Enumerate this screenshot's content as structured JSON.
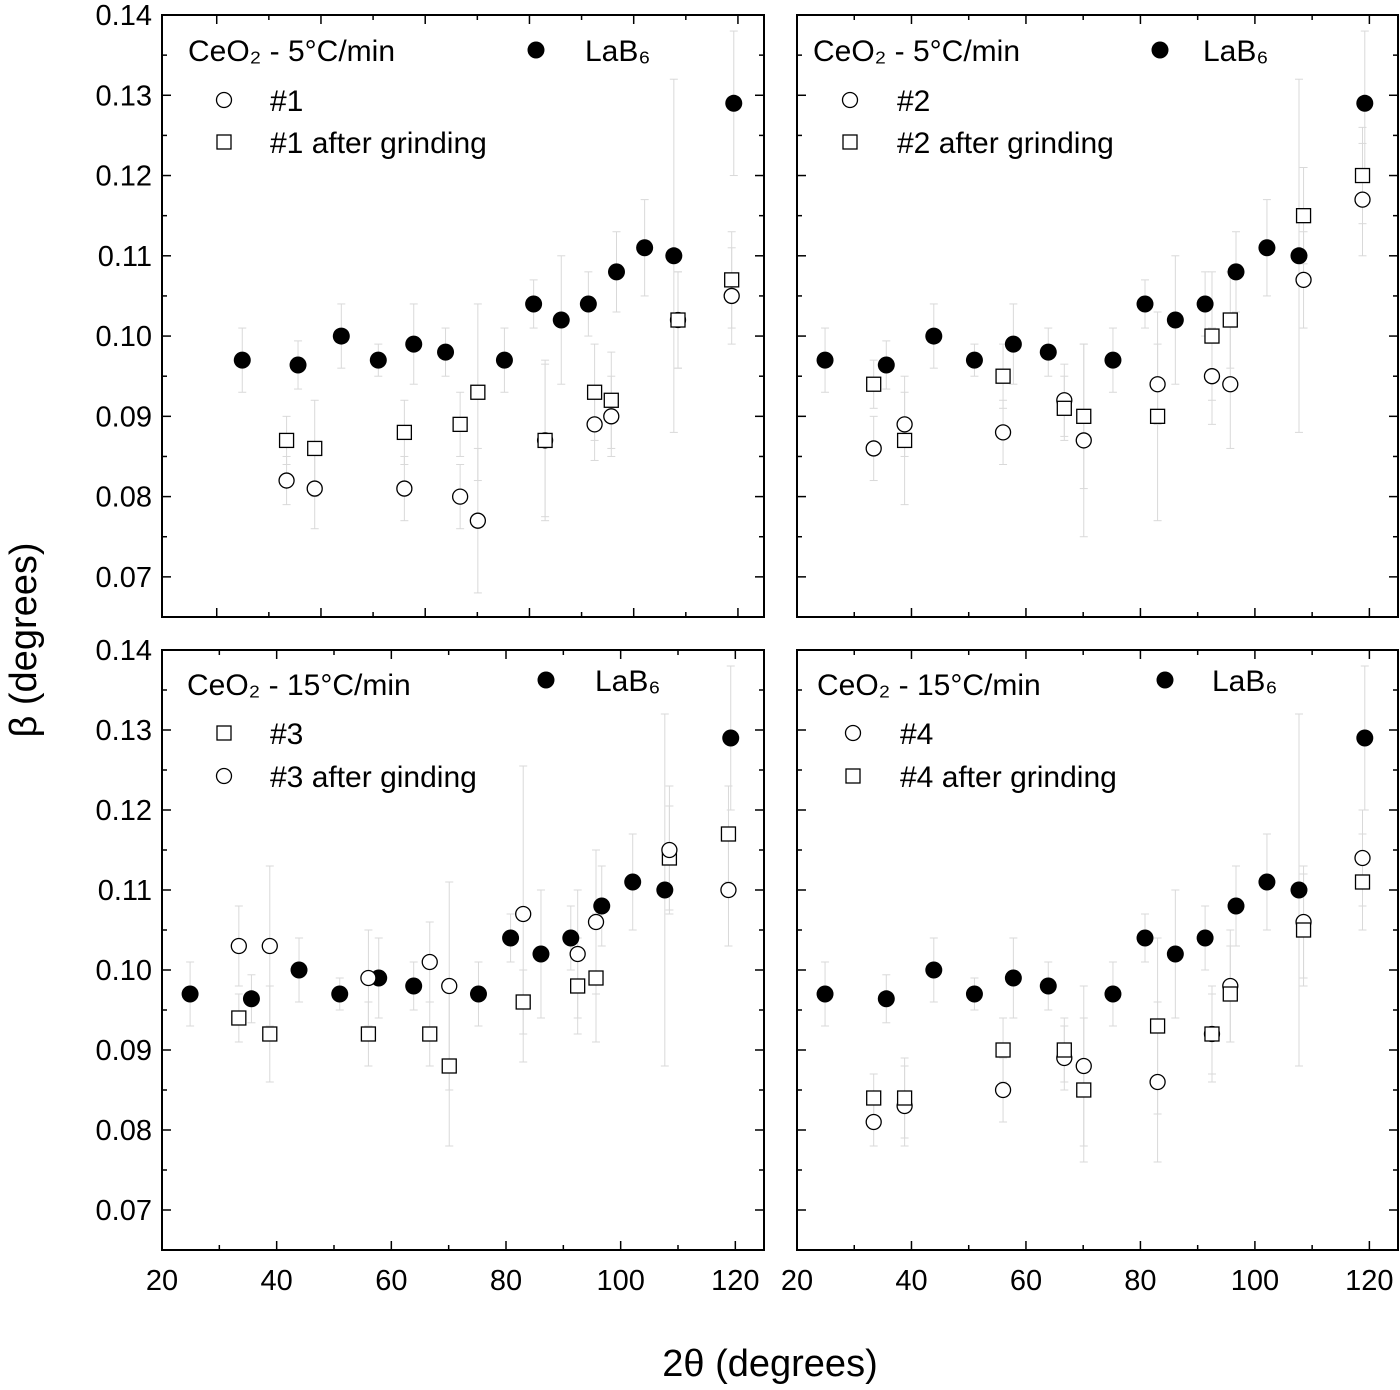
{
  "figure": {
    "xlabel": "2θ (degrees)",
    "ylabel": "β (degrees)",
    "colors": {
      "marker": "#000000",
      "error_bar": "#d9d9d9",
      "axes": "#000000"
    },
    "grid": false
  },
  "chart_data": [
    {
      "type": "scatter",
      "annotation": "CeO₂ - 5°C/min",
      "xlim": [
        9.5,
        125
      ],
      "ylim": [
        0.065,
        0.14
      ],
      "xticks": [
        20,
        30,
        40,
        50,
        60,
        70,
        80,
        90,
        100,
        110,
        120
      ],
      "xtick_labels": [],
      "yticks": [
        0.07,
        0.08,
        0.09,
        0.1,
        0.11,
        0.12,
        0.13,
        0.14
      ],
      "ytick_labels": [
        "0.07",
        "0.08",
        "0.09",
        "0.10",
        "0.11",
        "0.12",
        "0.13",
        "0.14"
      ],
      "series": [
        {
          "name": "LaB₆",
          "marker": "filled-circle",
          "x": [
            24.9,
            35.6,
            43.9,
            51.0,
            57.8,
            63.9,
            75.2,
            80.8,
            86.1,
            91.3,
            96.7,
            102.1,
            107.7,
            119.2
          ],
          "y": [
            0.097,
            0.0964,
            0.1,
            0.097,
            0.099,
            0.098,
            0.097,
            0.104,
            0.102,
            0.104,
            0.108,
            0.111,
            0.11,
            0.129
          ],
          "err": [
            0.004,
            0.003,
            0.004,
            0.002,
            0.005,
            0.003,
            0.004,
            0.003,
            0.008,
            0.004,
            0.005,
            0.006,
            0.022,
            0.009
          ]
        },
        {
          "name": "#1",
          "marker": "open-circle",
          "x": [
            33.4,
            38.8,
            56.0,
            66.7,
            70.1,
            83.0,
            92.5,
            95.7,
            108.5,
            118.8
          ],
          "y": [
            0.082,
            0.081,
            0.081,
            0.08,
            0.077,
            0.087,
            0.089,
            0.09,
            0.102,
            0.105
          ],
          "err": [
            0.003,
            0.005,
            0.004,
            0.004,
            0.009,
            0.01,
            0.0045,
            0.005,
            0.006,
            0.006
          ]
        },
        {
          "name": "#1 after grinding",
          "marker": "open-square",
          "x": [
            33.4,
            38.8,
            56.0,
            66.7,
            70.1,
            83.0,
            92.5,
            95.7,
            108.5,
            118.8
          ],
          "y": [
            0.087,
            0.086,
            0.088,
            0.089,
            0.093,
            0.087,
            0.093,
            0.092,
            0.102,
            0.107
          ],
          "err": [
            0.003,
            0.006,
            0.004,
            0.004,
            0.011,
            0.0095,
            0.006,
            0.006,
            0.006,
            0.006
          ]
        }
      ]
    },
    {
      "type": "scatter",
      "annotation": "CeO₂ - 5°C/min",
      "xlim": [
        20,
        125
      ],
      "ylim": [
        0.065,
        0.14
      ],
      "xticks": [
        20,
        30,
        40,
        50,
        60,
        70,
        80,
        90,
        100,
        110,
        120
      ],
      "xtick_labels": [],
      "yticks": [
        0.07,
        0.08,
        0.09,
        0.1,
        0.11,
        0.12,
        0.13,
        0.14
      ],
      "ytick_labels": [],
      "series": [
        {
          "name": "LaB₆",
          "marker": "filled-circle",
          "x": [
            24.9,
            35.6,
            43.9,
            51.0,
            57.8,
            63.9,
            75.2,
            80.8,
            86.1,
            91.3,
            96.7,
            102.1,
            107.7,
            119.2
          ],
          "y": [
            0.097,
            0.0964,
            0.1,
            0.097,
            0.099,
            0.098,
            0.097,
            0.104,
            0.102,
            0.104,
            0.108,
            0.111,
            0.11,
            0.129
          ],
          "err": [
            0.004,
            0.003,
            0.004,
            0.002,
            0.005,
            0.003,
            0.004,
            0.003,
            0.008,
            0.004,
            0.005,
            0.006,
            0.022,
            0.009
          ]
        },
        {
          "name": "#2",
          "marker": "open-circle",
          "x": [
            33.4,
            38.8,
            56.0,
            66.7,
            70.1,
            83.0,
            92.5,
            95.7,
            108.5,
            118.8
          ],
          "y": [
            0.086,
            0.089,
            0.088,
            0.092,
            0.087,
            0.094,
            0.095,
            0.094,
            0.107,
            0.117
          ],
          "err": [
            0.004,
            0.004,
            0.004,
            0.0045,
            0.012,
            0.005,
            0.006,
            0.008,
            0.006,
            0.007
          ]
        },
        {
          "name": "#2 after grinding",
          "marker": "open-square",
          "x": [
            33.4,
            38.8,
            56.0,
            66.7,
            70.1,
            83.0,
            92.5,
            95.7,
            108.5,
            118.8
          ],
          "y": [
            0.094,
            0.087,
            0.095,
            0.091,
            0.09,
            0.09,
            0.1,
            0.102,
            0.115,
            0.12
          ],
          "err": [
            0.003,
            0.008,
            0.004,
            0.004,
            0.009,
            0.013,
            0.008,
            0.006,
            0.006,
            0.006
          ]
        }
      ]
    },
    {
      "type": "scatter",
      "annotation": "CeO₂ - 15°C/min",
      "xlim": [
        20,
        125
      ],
      "ylim": [
        0.065,
        0.14
      ],
      "xticks": [
        20,
        30,
        40,
        50,
        60,
        70,
        80,
        90,
        100,
        110,
        120
      ],
      "xtick_labels": [
        "20",
        "40",
        "60",
        "80",
        "100",
        "120"
      ],
      "yticks": [
        0.07,
        0.08,
        0.09,
        0.1,
        0.11,
        0.12,
        0.13,
        0.14
      ],
      "ytick_labels": [
        "0.07",
        "0.08",
        "0.09",
        "0.10",
        "0.11",
        "0.12",
        "0.13",
        "0.14"
      ],
      "series": [
        {
          "name": "LaB₆",
          "marker": "filled-circle",
          "x": [
            24.9,
            35.6,
            43.9,
            51.0,
            57.8,
            63.9,
            75.2,
            80.8,
            86.1,
            91.3,
            96.7,
            102.1,
            107.7,
            119.2
          ],
          "y": [
            0.097,
            0.0964,
            0.1,
            0.097,
            0.099,
            0.098,
            0.097,
            0.104,
            0.102,
            0.104,
            0.108,
            0.111,
            0.11,
            0.129
          ],
          "err": [
            0.004,
            0.003,
            0.004,
            0.002,
            0.005,
            0.003,
            0.004,
            0.003,
            0.008,
            0.004,
            0.005,
            0.006,
            0.022,
            0.009
          ]
        },
        {
          "name": "#3",
          "marker": "open-square",
          "x": [
            33.4,
            38.8,
            56.0,
            66.7,
            70.1,
            83.0,
            92.5,
            95.7,
            108.5,
            118.8
          ],
          "y": [
            0.094,
            0.092,
            0.092,
            0.092,
            0.088,
            0.096,
            0.098,
            0.099,
            0.114,
            0.117
          ],
          "err": [
            0.003,
            0.006,
            0.004,
            0.004,
            0.01,
            0.004,
            0.006,
            0.008,
            0.0065,
            0.006
          ]
        },
        {
          "name": "#3 after ginding",
          "marker": "open-circle",
          "x": [
            33.4,
            38.8,
            56.0,
            66.7,
            70.1,
            83.0,
            92.5,
            95.7,
            108.5,
            118.8
          ],
          "y": [
            0.103,
            0.103,
            0.099,
            0.101,
            0.098,
            0.107,
            0.102,
            0.106,
            0.115,
            0.11
          ],
          "err": [
            0.005,
            0.01,
            0.006,
            0.005,
            0.013,
            0.0185,
            0.008,
            0.009,
            0.008,
            0.007
          ]
        }
      ]
    },
    {
      "type": "scatter",
      "annotation": "CeO₂ - 15°C/min",
      "xlim": [
        20,
        125
      ],
      "ylim": [
        0.065,
        0.14
      ],
      "xticks": [
        20,
        30,
        40,
        50,
        60,
        70,
        80,
        90,
        100,
        110,
        120
      ],
      "xtick_labels": [
        "20",
        "40",
        "60",
        "80",
        "100",
        "120"
      ],
      "yticks": [
        0.07,
        0.08,
        0.09,
        0.1,
        0.11,
        0.12,
        0.13,
        0.14
      ],
      "ytick_labels": [],
      "series": [
        {
          "name": "LaB₆",
          "marker": "filled-circle",
          "x": [
            24.9,
            35.6,
            43.9,
            51.0,
            57.8,
            63.9,
            75.2,
            80.8,
            86.1,
            91.3,
            96.7,
            102.1,
            107.7,
            119.2
          ],
          "y": [
            0.097,
            0.0964,
            0.1,
            0.097,
            0.099,
            0.098,
            0.097,
            0.104,
            0.102,
            0.104,
            0.108,
            0.111,
            0.11,
            0.129
          ],
          "err": [
            0.004,
            0.003,
            0.004,
            0.002,
            0.005,
            0.003,
            0.004,
            0.003,
            0.008,
            0.004,
            0.005,
            0.006,
            0.022,
            0.009
          ]
        },
        {
          "name": "#4",
          "marker": "open-circle",
          "x": [
            33.4,
            38.8,
            56.0,
            66.7,
            70.1,
            83.0,
            92.5,
            95.7,
            108.5,
            118.8
          ],
          "y": [
            0.081,
            0.083,
            0.085,
            0.089,
            0.088,
            0.086,
            0.092,
            0.098,
            0.106,
            0.114
          ],
          "err": [
            0.003,
            0.005,
            0.004,
            0.004,
            0.01,
            0.01,
            0.006,
            0.007,
            0.007,
            0.006
          ]
        },
        {
          "name": "#4 after grinding",
          "marker": "open-square",
          "x": [
            33.4,
            38.8,
            56.0,
            66.7,
            70.1,
            83.0,
            92.5,
            95.7,
            108.5,
            118.8
          ],
          "y": [
            0.084,
            0.084,
            0.09,
            0.09,
            0.085,
            0.093,
            0.092,
            0.097,
            0.105,
            0.111
          ],
          "err": [
            0.003,
            0.005,
            0.004,
            0.004,
            0.009,
            0.011,
            0.005,
            0.006,
            0.007,
            0.006
          ]
        }
      ]
    }
  ]
}
